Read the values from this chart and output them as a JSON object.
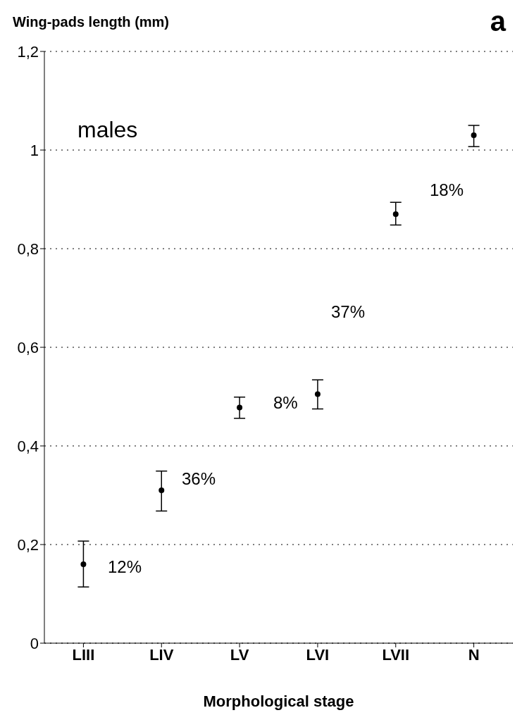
{
  "chart_data": {
    "type": "scatter",
    "ylabel": "Wing-pads length (mm)",
    "xlabel": "Morphological stage",
    "categories": [
      "LIII",
      "LIV",
      "LV",
      "LVI",
      "LVII",
      "N"
    ],
    "values": [
      0.16,
      0.31,
      0.478,
      0.505,
      0.87,
      1.03
    ],
    "errors": [
      [
        0.114,
        0.207
      ],
      [
        0.268,
        0.349
      ],
      [
        0.456,
        0.499
      ],
      [
        0.475,
        0.534
      ],
      [
        0.848,
        0.894
      ],
      [
        1.007,
        1.05
      ]
    ],
    "color": "#000000",
    "ylim": [
      0,
      1.2
    ],
    "yticks": [
      0,
      {
        "value": 0.2,
        "label": "0,2"
      },
      {
        "value": 0.4,
        "label": "0,4"
      },
      {
        "value": 0.6,
        "label": "0,6"
      },
      {
        "value": 0.8,
        "label": "0,8"
      },
      1,
      {
        "value": 1.2,
        "label": "1,2"
      }
    ],
    "grid": "y",
    "marker": "circle",
    "line_style": "dotted",
    "annotations": [
      "males",
      "a",
      "12%",
      "36%",
      "8%",
      "37%",
      "18%"
    ]
  }
}
